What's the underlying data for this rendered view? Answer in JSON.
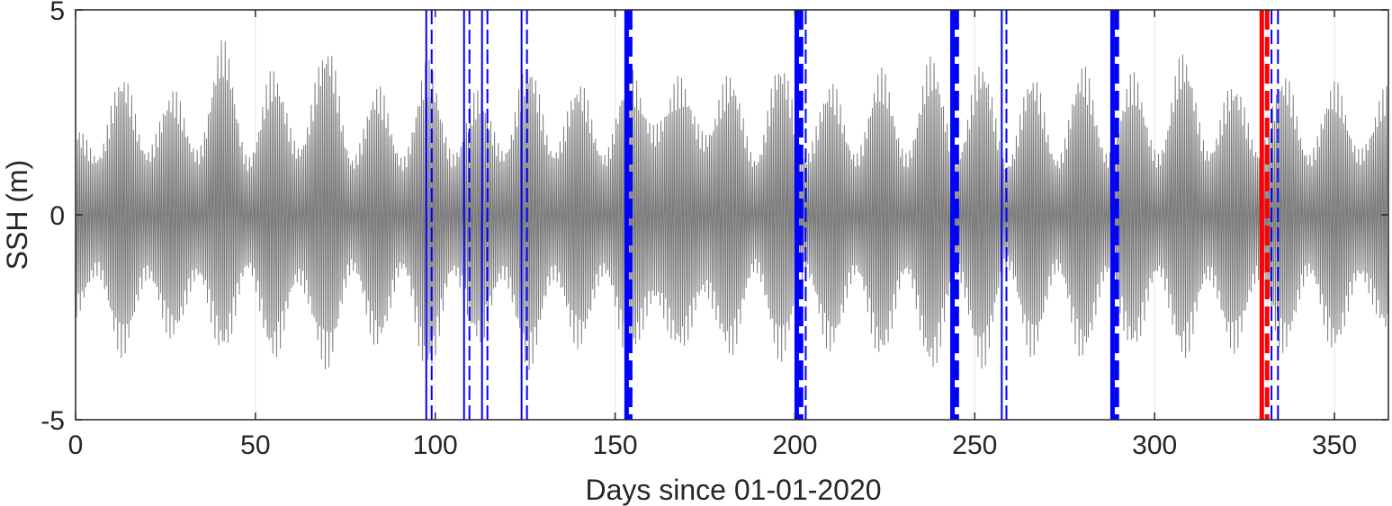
{
  "chart_data": {
    "type": "line",
    "xlabel": "Days since 01-01-2020",
    "ylabel": "SSH (m)",
    "xlim": [
      0,
      365
    ],
    "ylim": [
      -5,
      5
    ],
    "xticks": [
      0,
      50,
      100,
      150,
      200,
      250,
      300,
      350
    ],
    "xtick_labels": [
      "0",
      "50",
      "100",
      "150",
      "200",
      "250",
      "300",
      "350"
    ],
    "yticks": [
      -5,
      0,
      5
    ],
    "ytick_labels": [
      "-5",
      "0",
      "5"
    ],
    "grid": true,
    "series": [
      {
        "style": "oscillating tidal signal",
        "color": "#6e6e6e",
        "x": [
          0,
          6,
          13,
          20,
          27,
          34,
          41,
          48,
          55,
          62,
          70,
          77,
          84,
          91,
          98,
          105,
          112,
          119,
          126,
          133,
          140,
          147,
          154,
          161,
          168,
          175,
          182,
          189,
          196,
          203,
          210,
          217,
          224,
          231,
          238,
          245,
          252,
          259,
          266,
          273,
          280,
          287,
          294,
          301,
          308,
          315,
          322,
          329,
          336,
          343,
          350,
          357,
          365
        ],
        "upper_envelope": [
          2.2,
          1.5,
          3.5,
          1.6,
          3.1,
          1.6,
          4.3,
          1.4,
          3.6,
          1.7,
          4.2,
          1.4,
          3.2,
          1.4,
          3.8,
          1.5,
          3.1,
          1.6,
          3.8,
          1.6,
          3.3,
          1.5,
          3.6,
          2.2,
          3.4,
          2.0,
          3.5,
          1.4,
          3.8,
          1.5,
          3.3,
          1.5,
          3.6,
          1.5,
          3.9,
          1.5,
          3.8,
          1.3,
          3.5,
          1.4,
          3.7,
          1.5,
          3.5,
          1.5,
          4.0,
          1.6,
          3.3,
          1.6,
          3.5,
          1.5,
          3.3,
          1.6,
          3.2
        ],
        "lower_envelope": [
          -2.5,
          -1.5,
          -3.5,
          -1.6,
          -3.1,
          -1.6,
          -3.5,
          -1.4,
          -3.6,
          -1.7,
          -3.8,
          -1.4,
          -3.3,
          -1.4,
          -4.0,
          -1.5,
          -3.2,
          -1.6,
          -3.8,
          -1.6,
          -3.3,
          -1.5,
          -3.6,
          -2.2,
          -3.4,
          -2.0,
          -3.5,
          -1.4,
          -3.6,
          -1.5,
          -3.4,
          -1.5,
          -3.6,
          -1.5,
          -3.9,
          -1.5,
          -3.8,
          -1.3,
          -3.5,
          -1.4,
          -3.6,
          -1.5,
          -3.4,
          -1.5,
          -3.6,
          -1.6,
          -3.4,
          -1.6,
          -3.4,
          -1.5,
          -3.4,
          -1.6,
          -3.0
        ]
      }
    ],
    "vlines": [
      {
        "x": 97.5,
        "style": "solid",
        "weight": "thin",
        "color": "#0000ff"
      },
      {
        "x": 99,
        "style": "dashed",
        "weight": "thin",
        "color": "#0000ff"
      },
      {
        "x": 108,
        "style": "solid",
        "weight": "thin",
        "color": "#0000ff"
      },
      {
        "x": 109.5,
        "style": "dashed",
        "weight": "thin",
        "color": "#0000ff"
      },
      {
        "x": 113,
        "style": "solid",
        "weight": "thin",
        "color": "#0000ff"
      },
      {
        "x": 114.5,
        "style": "dashed",
        "weight": "thin",
        "color": "#0000ff"
      },
      {
        "x": 124,
        "style": "solid",
        "weight": "thin",
        "color": "#0000ff"
      },
      {
        "x": 125.5,
        "style": "dashed",
        "weight": "thin",
        "color": "#0000ff"
      },
      {
        "x": 153.2,
        "style": "solid",
        "weight": "thick",
        "color": "#0000ff"
      },
      {
        "x": 154.2,
        "style": "dashed",
        "weight": "thick",
        "color": "#0000ff"
      },
      {
        "x": 200.5,
        "style": "solid",
        "weight": "thick",
        "color": "#0000ff"
      },
      {
        "x": 201.7,
        "style": "dashed",
        "weight": "thick",
        "color": "#0000ff"
      },
      {
        "x": 203,
        "style": "dashed",
        "weight": "thin",
        "color": "#0000ff"
      },
      {
        "x": 243.8,
        "style": "solid",
        "weight": "thick",
        "color": "#0000ff"
      },
      {
        "x": 245,
        "style": "dashed",
        "weight": "thick",
        "color": "#0000ff"
      },
      {
        "x": 257.5,
        "style": "solid",
        "weight": "thin",
        "color": "#0000ff"
      },
      {
        "x": 258.8,
        "style": "dashed",
        "weight": "thin",
        "color": "#0000ff"
      },
      {
        "x": 288.3,
        "style": "solid",
        "weight": "thick",
        "color": "#0000ff"
      },
      {
        "x": 289.5,
        "style": "dashed",
        "weight": "thick",
        "color": "#0000ff"
      },
      {
        "x": 329.8,
        "style": "solid",
        "weight": "thick",
        "color": "#ff0000"
      },
      {
        "x": 331.3,
        "style": "dashed",
        "weight": "thick",
        "color": "#ff0000"
      },
      {
        "x": 332.5,
        "style": "dashed",
        "weight": "thin",
        "color": "#0000ff"
      },
      {
        "x": 334.3,
        "style": "dashed",
        "weight": "thin",
        "color": "#0000ff"
      }
    ]
  }
}
